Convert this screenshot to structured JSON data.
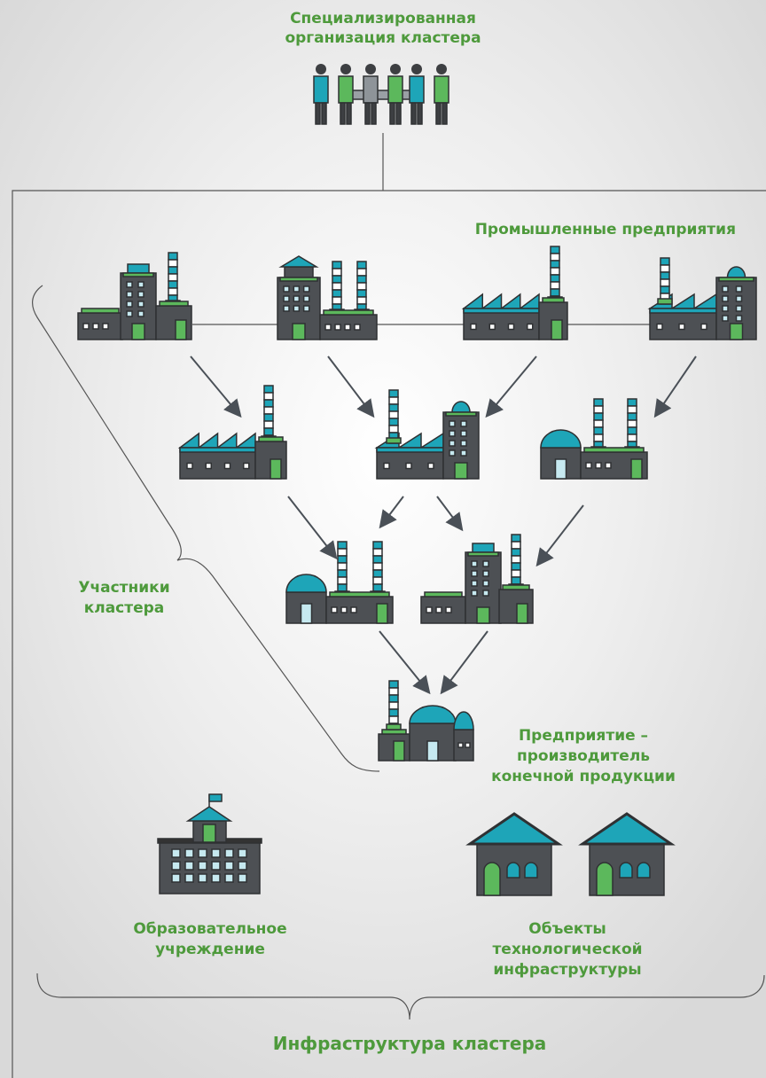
{
  "top_org": {
    "lines": [
      "Специализированная",
      "организация кластера"
    ]
  },
  "industrial": "Промышленные предприятия",
  "participants": {
    "lines": [
      "Участники",
      "кластера"
    ]
  },
  "final_producer": {
    "lines": [
      "Предприятие –",
      "производитель",
      "конечной продукции"
    ]
  },
  "education": {
    "lines": [
      "Образовательное",
      "учреждение"
    ]
  },
  "tech_infra": {
    "lines": [
      "Объекты",
      "технологической",
      "инфраструктуры"
    ]
  },
  "infrastructure": "Инфраструктура кластера"
}
